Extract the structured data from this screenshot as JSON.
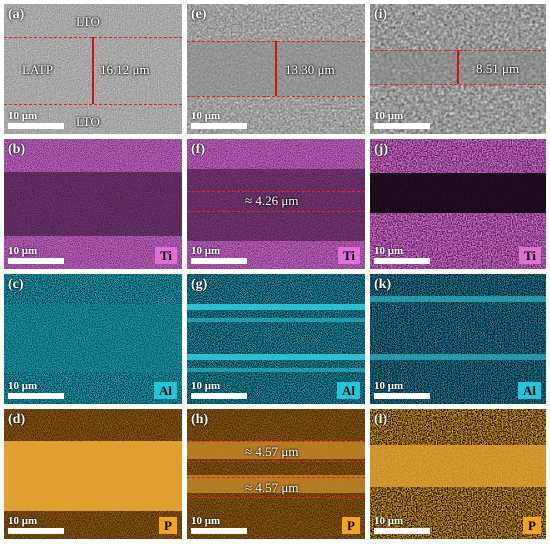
{
  "columns": [
    {
      "panels": [
        {
          "label": "(a)",
          "kind": "sem",
          "scale": "10 μm",
          "annotations": [
            "LTO",
            "LATP",
            "16.12 μm",
            "LTO"
          ]
        },
        {
          "label": "(b)",
          "kind": "ti",
          "scale": "10 μm",
          "element": "Ti"
        },
        {
          "label": "(c)",
          "kind": "al",
          "scale": "10 μm",
          "element": "Al"
        },
        {
          "label": "(d)",
          "kind": "p",
          "scale": "10 μm",
          "element": "P"
        }
      ]
    },
    {
      "panels": [
        {
          "label": "(e)",
          "kind": "sem",
          "scale": "10 μm",
          "annotations": [
            "13.30 μm"
          ]
        },
        {
          "label": "(f)",
          "kind": "ti",
          "scale": "10 μm",
          "element": "Ti",
          "annotations": [
            "≈ 4.26 μm"
          ]
        },
        {
          "label": "(g)",
          "kind": "al",
          "scale": "10 μm",
          "element": "Al"
        },
        {
          "label": "(h)",
          "kind": "p",
          "scale": "10 μm",
          "element": "P",
          "annotations": [
            "≈ 4.57 μm",
            "≈ 4.57 μm"
          ]
        }
      ]
    },
    {
      "panels": [
        {
          "label": "(i)",
          "kind": "sem",
          "scale": "10 μm",
          "annotations": [
            "8.51 μm"
          ]
        },
        {
          "label": "(j)",
          "kind": "ti",
          "scale": "10 μm",
          "element": "Ti"
        },
        {
          "label": "(k)",
          "kind": "al",
          "scale": "10 μm",
          "element": "Al"
        },
        {
          "label": "(l)",
          "kind": "p",
          "scale": "10 μm",
          "element": "P"
        }
      ]
    }
  ],
  "colors": {
    "ti_badge": "#e070d8",
    "al_badge": "#1ec8dc",
    "p_badge": "#f5a21c",
    "dash": "#e3261e"
  }
}
